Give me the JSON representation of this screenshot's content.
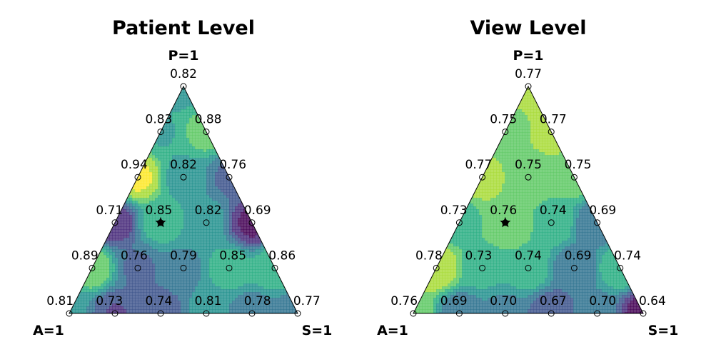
{
  "chart_data": [
    {
      "type": "heatmap",
      "subtype": "ternary",
      "title": "Patient Level",
      "vertex_labels": {
        "top": "P=1",
        "left": "A=1",
        "right": "S=1"
      },
      "points": [
        {
          "p": 1.0,
          "a": 0.0,
          "s": 0.0,
          "label": "0.82",
          "value": 0.82
        },
        {
          "p": 0.8,
          "a": 0.2,
          "s": 0.0,
          "label": "0.83",
          "value": 0.83
        },
        {
          "p": 0.8,
          "a": 0.0,
          "s": 0.2,
          "label": "0.88",
          "value": 0.88
        },
        {
          "p": 0.6,
          "a": 0.4,
          "s": 0.0,
          "label": "0.94",
          "value": 0.94
        },
        {
          "p": 0.6,
          "a": 0.2,
          "s": 0.2,
          "label": "0.82",
          "value": 0.82
        },
        {
          "p": 0.6,
          "a": 0.0,
          "s": 0.4,
          "label": "0.76",
          "value": 0.76
        },
        {
          "p": 0.4,
          "a": 0.6,
          "s": 0.0,
          "label": "0.71",
          "value": 0.71
        },
        {
          "p": 0.4,
          "a": 0.4,
          "s": 0.2,
          "label": "0.85",
          "value": 0.85
        },
        {
          "p": 0.4,
          "a": 0.2,
          "s": 0.4,
          "label": "0.82",
          "value": 0.82
        },
        {
          "p": 0.4,
          "a": 0.0,
          "s": 0.6,
          "label": "0.69",
          "value": 0.69
        },
        {
          "p": 0.2,
          "a": 0.8,
          "s": 0.0,
          "label": "0.89",
          "value": 0.89
        },
        {
          "p": 0.2,
          "a": 0.6,
          "s": 0.2,
          "label": "0.76",
          "value": 0.76
        },
        {
          "p": 0.2,
          "a": 0.4,
          "s": 0.4,
          "label": "0.79",
          "value": 0.79
        },
        {
          "p": 0.2,
          "a": 0.2,
          "s": 0.6,
          "label": "0.85",
          "value": 0.85
        },
        {
          "p": 0.2,
          "a": 0.0,
          "s": 0.8,
          "label": "0.86",
          "value": 0.86
        },
        {
          "p": 0.0,
          "a": 1.0,
          "s": 0.0,
          "label": "0.81",
          "value": 0.81
        },
        {
          "p": 0.0,
          "a": 0.8,
          "s": 0.2,
          "label": "0.73",
          "value": 0.73
        },
        {
          "p": 0.0,
          "a": 0.6,
          "s": 0.4,
          "label": "0.74",
          "value": 0.74
        },
        {
          "p": 0.0,
          "a": 0.4,
          "s": 0.6,
          "label": "0.81",
          "value": 0.81
        },
        {
          "p": 0.0,
          "a": 0.2,
          "s": 0.8,
          "label": "0.78",
          "value": 0.78
        },
        {
          "p": 0.0,
          "a": 0.0,
          "s": 1.0,
          "label": "0.77",
          "value": 0.77
        }
      ],
      "star": {
        "p": 0.4,
        "a": 0.4,
        "s": 0.2
      },
      "colormap": "viridis",
      "color_range": [
        0.68,
        0.95
      ]
    },
    {
      "type": "heatmap",
      "subtype": "ternary",
      "title": "View Level",
      "vertex_labels": {
        "top": "P=1",
        "left": "A=1",
        "right": "S=1"
      },
      "points": [
        {
          "p": 1.0,
          "a": 0.0,
          "s": 0.0,
          "label": "0.77",
          "value": 0.77
        },
        {
          "p": 0.8,
          "a": 0.2,
          "s": 0.0,
          "label": "0.75",
          "value": 0.75
        },
        {
          "p": 0.8,
          "a": 0.0,
          "s": 0.2,
          "label": "0.77",
          "value": 0.77
        },
        {
          "p": 0.6,
          "a": 0.4,
          "s": 0.0,
          "label": "0.77",
          "value": 0.77
        },
        {
          "p": 0.6,
          "a": 0.2,
          "s": 0.2,
          "label": "0.75",
          "value": 0.75
        },
        {
          "p": 0.6,
          "a": 0.0,
          "s": 0.4,
          "label": "0.75",
          "value": 0.75
        },
        {
          "p": 0.4,
          "a": 0.6,
          "s": 0.0,
          "label": "0.73",
          "value": 0.73
        },
        {
          "p": 0.4,
          "a": 0.4,
          "s": 0.2,
          "label": "0.76",
          "value": 0.76
        },
        {
          "p": 0.4,
          "a": 0.2,
          "s": 0.4,
          "label": "0.74",
          "value": 0.74
        },
        {
          "p": 0.4,
          "a": 0.0,
          "s": 0.6,
          "label": "0.69",
          "value": 0.69
        },
        {
          "p": 0.2,
          "a": 0.8,
          "s": 0.0,
          "label": "0.78",
          "value": 0.78
        },
        {
          "p": 0.2,
          "a": 0.6,
          "s": 0.2,
          "label": "0.73",
          "value": 0.73
        },
        {
          "p": 0.2,
          "a": 0.4,
          "s": 0.4,
          "label": "0.74",
          "value": 0.74
        },
        {
          "p": 0.2,
          "a": 0.2,
          "s": 0.6,
          "label": "0.69",
          "value": 0.69
        },
        {
          "p": 0.2,
          "a": 0.0,
          "s": 0.8,
          "label": "0.74",
          "value": 0.74
        },
        {
          "p": 0.0,
          "a": 1.0,
          "s": 0.0,
          "label": "0.76",
          "value": 0.76
        },
        {
          "p": 0.0,
          "a": 0.8,
          "s": 0.2,
          "label": "0.69",
          "value": 0.69
        },
        {
          "p": 0.0,
          "a": 0.6,
          "s": 0.4,
          "label": "0.70",
          "value": 0.7
        },
        {
          "p": 0.0,
          "a": 0.4,
          "s": 0.6,
          "label": "0.67",
          "value": 0.67
        },
        {
          "p": 0.0,
          "a": 0.2,
          "s": 0.8,
          "label": "0.70",
          "value": 0.7
        },
        {
          "p": 0.0,
          "a": 0.0,
          "s": 1.0,
          "label": "0.64",
          "value": 0.64
        }
      ],
      "star": {
        "p": 0.4,
        "a": 0.4,
        "s": 0.2
      },
      "colormap": "viridis",
      "color_range": [
        0.64,
        0.79
      ]
    }
  ]
}
